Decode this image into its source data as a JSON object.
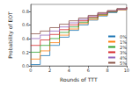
{
  "chart_data": {
    "type": "line",
    "line_style": "step",
    "x_label": "Rounds of TTT",
    "y_label": "Probability of EOT",
    "x": [
      0,
      1,
      2,
      3,
      4,
      5,
      6,
      7,
      8,
      9,
      10
    ],
    "series": [
      {
        "name": "0%",
        "color": "#1f77b4",
        "values": [
          0.02,
          0.15,
          0.3,
          0.42,
          0.52,
          0.6,
          0.67,
          0.73,
          0.78,
          0.82,
          0.85
        ]
      },
      {
        "name": "1%",
        "color": "#ff7f0e",
        "values": [
          0.1,
          0.22,
          0.34,
          0.45,
          0.54,
          0.62,
          0.68,
          0.74,
          0.79,
          0.82,
          0.85
        ]
      },
      {
        "name": "2%",
        "color": "#2ca02c",
        "values": [
          0.2,
          0.3,
          0.4,
          0.49,
          0.57,
          0.64,
          0.7,
          0.75,
          0.79,
          0.83,
          0.85
        ]
      },
      {
        "name": "3%",
        "color": "#d62728",
        "values": [
          0.3,
          0.38,
          0.46,
          0.53,
          0.6,
          0.66,
          0.71,
          0.76,
          0.8,
          0.83,
          0.86
        ]
      },
      {
        "name": "4%",
        "color": "#9467bd",
        "values": [
          0.4,
          0.45,
          0.51,
          0.57,
          0.63,
          0.68,
          0.73,
          0.77,
          0.8,
          0.83,
          0.86
        ]
      },
      {
        "name": "5%",
        "color": "#8c564b",
        "values": [
          0.47,
          0.51,
          0.56,
          0.61,
          0.66,
          0.7,
          0.74,
          0.78,
          0.81,
          0.84,
          0.86
        ]
      }
    ],
    "xlim": [
      0,
      10
    ],
    "xticks": [
      0,
      2,
      4,
      6,
      8,
      10
    ],
    "ylim": [
      0,
      0.9
    ],
    "yticks": [
      {
        "value": 0,
        "label": "0.0"
      },
      {
        "value": 0.2,
        "label": "0.2"
      },
      {
        "value": 0.4,
        "label": "0.4"
      },
      {
        "value": 0.6,
        "label": "0.6"
      },
      {
        "value": 0.8,
        "label": "0.8"
      }
    ],
    "legend": "lower right",
    "grid": false
  }
}
